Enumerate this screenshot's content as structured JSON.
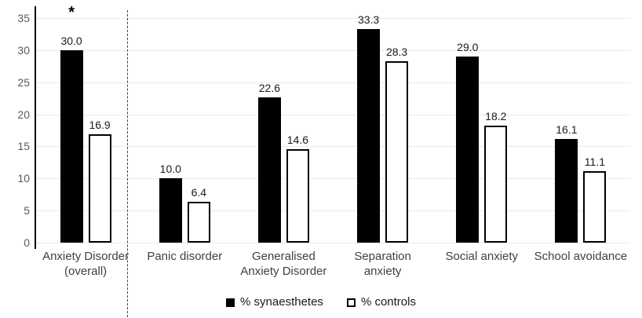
{
  "chart_data": {
    "type": "bar",
    "title": "",
    "xlabel": "",
    "ylabel": "",
    "categories": [
      "Anxiety Disorder (overall)",
      "Panic disorder",
      "Generalised Anxiety Disorder",
      "Separation anxiety",
      "Social anxiety",
      "School avoidance"
    ],
    "category_label_lines": [
      [
        "Anxiety Disorder",
        "(overall)"
      ],
      [
        "Panic disorder"
      ],
      [
        "Generalised",
        "Anxiety Disorder"
      ],
      [
        "Separation",
        "anxiety"
      ],
      [
        "Social anxiety"
      ],
      [
        "School avoidance"
      ]
    ],
    "series": [
      {
        "name": "% synaesthetes",
        "values": [
          30.0,
          10.0,
          22.6,
          33.3,
          29.0,
          16.1
        ],
        "swatch": "black"
      },
      {
        "name": "% controls",
        "values": [
          16.9,
          6.4,
          14.6,
          28.3,
          18.2,
          11.1
        ],
        "swatch": "white-outlined"
      }
    ],
    "value_label_format": "one-decimal",
    "annotation": {
      "text": "*",
      "category_index": 0,
      "meaning": "significance-marker"
    },
    "separator_after_category_index": 0,
    "yticks": [
      0,
      5,
      10,
      15,
      20,
      25,
      30,
      35
    ],
    "ylim": [
      0,
      35
    ],
    "grid": true,
    "legend_position": "bottom-center",
    "colors": {
      "synaesthetes_bar": "#000000",
      "controls_bar_fill": "#ffffff",
      "controls_bar_border": "#000000",
      "gridline": "#e9e9e9",
      "axis_line": "#000000",
      "tick_label": "#595959",
      "category_label": "#404040",
      "value_label": "#1a1a1a",
      "separator": "#404040",
      "background": "#ffffff"
    }
  }
}
